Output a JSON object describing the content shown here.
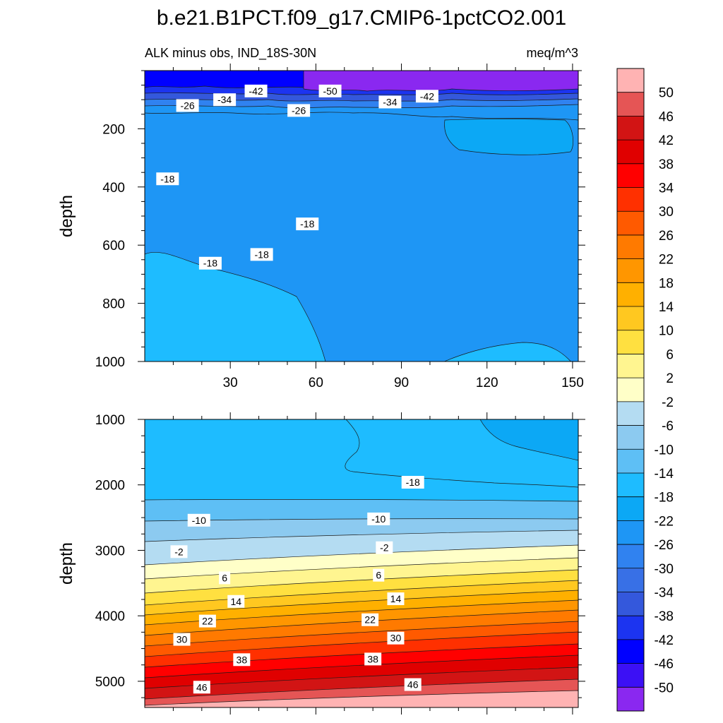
{
  "chart_data": {
    "type": "contour",
    "title": "b.e21.B1PCT.f09_g17.CMIP6-1pctCO2.001",
    "left_subtitle": "ALK minus obs, IND_18S-30N",
    "right_subtitle": "meq/m^3",
    "ylabel": "depth",
    "xlim": [
      0,
      152
    ],
    "x_ticks": [
      "30",
      "60",
      "90",
      "120",
      "150"
    ],
    "x_tick_values": [
      30,
      60,
      90,
      120,
      150
    ],
    "upper_panel": {
      "ylim": [
        0,
        1000
      ],
      "y_ticks": [
        "200",
        "400",
        "600",
        "800",
        "1000"
      ],
      "y_tick_values": [
        200,
        400,
        600,
        800,
        1000
      ],
      "contour_labels": [
        {
          "text": "-26",
          "x": 15,
          "y": 120
        },
        {
          "text": "-34",
          "x": 28,
          "y": 100
        },
        {
          "text": "-42",
          "x": 39,
          "y": 70
        },
        {
          "text": "-50",
          "x": 65,
          "y": 70
        },
        {
          "text": "-26",
          "x": 54,
          "y": 137
        },
        {
          "text": "-34",
          "x": 86,
          "y": 108
        },
        {
          "text": "-42",
          "x": 99,
          "y": 88
        },
        {
          "text": "-18",
          "x": 8,
          "y": 372
        },
        {
          "text": "-18",
          "x": 57,
          "y": 527
        },
        {
          "text": "-18",
          "x": 23,
          "y": 662
        },
        {
          "text": "-18",
          "x": 41,
          "y": 632
        }
      ]
    },
    "lower_panel": {
      "ylim": [
        1000,
        5400
      ],
      "y_ticks": [
        "1000",
        "2000",
        "3000",
        "4000",
        "5000"
      ],
      "y_tick_values": [
        1000,
        2000,
        3000,
        4000,
        5000
      ],
      "contour_labels": [
        {
          "text": "-18",
          "x": 94,
          "y": 1960
        },
        {
          "text": "-10",
          "x": 19,
          "y": 2540
        },
        {
          "text": "-10",
          "x": 82,
          "y": 2520
        },
        {
          "text": "-2",
          "x": 12,
          "y": 3020
        },
        {
          "text": "-2",
          "x": 84,
          "y": 2960
        },
        {
          "text": "6",
          "x": 28,
          "y": 3420
        },
        {
          "text": "6",
          "x": 82,
          "y": 3380
        },
        {
          "text": "14",
          "x": 32,
          "y": 3780
        },
        {
          "text": "14",
          "x": 88,
          "y": 3740
        },
        {
          "text": "22",
          "x": 22,
          "y": 4080
        },
        {
          "text": "22",
          "x": 79,
          "y": 4060
        },
        {
          "text": "30",
          "x": 13,
          "y": 4360
        },
        {
          "text": "30",
          "x": 88,
          "y": 4340
        },
        {
          "text": "38",
          "x": 34,
          "y": 4670
        },
        {
          "text": "38",
          "x": 80,
          "y": 4660
        },
        {
          "text": "46",
          "x": 20,
          "y": 5090
        },
        {
          "text": "46",
          "x": 94,
          "y": 5050
        }
      ]
    },
    "colorbar": {
      "labels": [
        "50",
        "46",
        "42",
        "38",
        "34",
        "30",
        "26",
        "22",
        "18",
        "14",
        "10",
        "6",
        "2",
        "-2",
        "-6",
        "-10",
        "-14",
        "-18",
        "-22",
        "-26",
        "-30",
        "-34",
        "-38",
        "-42",
        "-46",
        "-50"
      ],
      "colors": [
        "#ffb3b3",
        "#e55555",
        "#d21414",
        "#e00000",
        "#ff0000",
        "#ff3000",
        "#ff5a00",
        "#ff7a00",
        "#ff9600",
        "#ffb000",
        "#ffc820",
        "#ffe040",
        "#fff590",
        "#ffffc8",
        "#b4dcf2",
        "#8ccaf0",
        "#5ebff5",
        "#1ebcff",
        "#0ca8f5",
        "#1e96f5",
        "#3082f0",
        "#3870e6",
        "#3458dc",
        "#1c34f0",
        "#0000ff",
        "#3c10f5",
        "#8a28f0"
      ]
    }
  }
}
